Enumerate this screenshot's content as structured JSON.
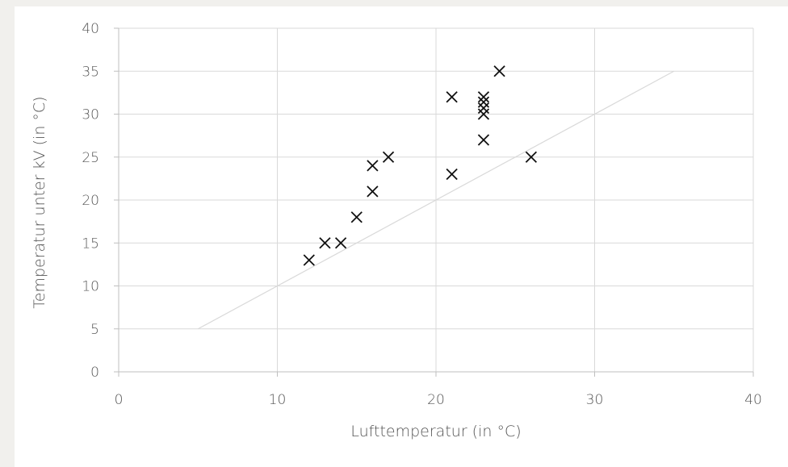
{
  "chart_data": {
    "type": "scatter",
    "xlabel": "Lufttemperatur (in °C)",
    "ylabel": "Temperatur unter kV (in °C)",
    "xlim": [
      0,
      40
    ],
    "ylim": [
      0,
      40
    ],
    "x_ticks": [
      0,
      10,
      20,
      30,
      40
    ],
    "y_ticks": [
      0,
      5,
      10,
      15,
      20,
      25,
      30,
      35,
      40
    ],
    "grid": true,
    "marker": "x",
    "marker_color": "#111111",
    "grid_color": "#d9d9d9",
    "reference_line": {
      "x": [
        5,
        35
      ],
      "y": [
        5,
        35
      ],
      "color": "#d9d9d9"
    },
    "points": [
      {
        "x": 12,
        "y": 13
      },
      {
        "x": 13,
        "y": 15
      },
      {
        "x": 14,
        "y": 15
      },
      {
        "x": 15,
        "y": 18
      },
      {
        "x": 16,
        "y": 21
      },
      {
        "x": 16,
        "y": 24
      },
      {
        "x": 17,
        "y": 25
      },
      {
        "x": 21,
        "y": 23
      },
      {
        "x": 21,
        "y": 32
      },
      {
        "x": 23,
        "y": 27
      },
      {
        "x": 23,
        "y": 30
      },
      {
        "x": 23,
        "y": 30.7
      },
      {
        "x": 23,
        "y": 31.4
      },
      {
        "x": 23,
        "y": 32
      },
      {
        "x": 24,
        "y": 35
      },
      {
        "x": 26,
        "y": 25
      }
    ]
  }
}
